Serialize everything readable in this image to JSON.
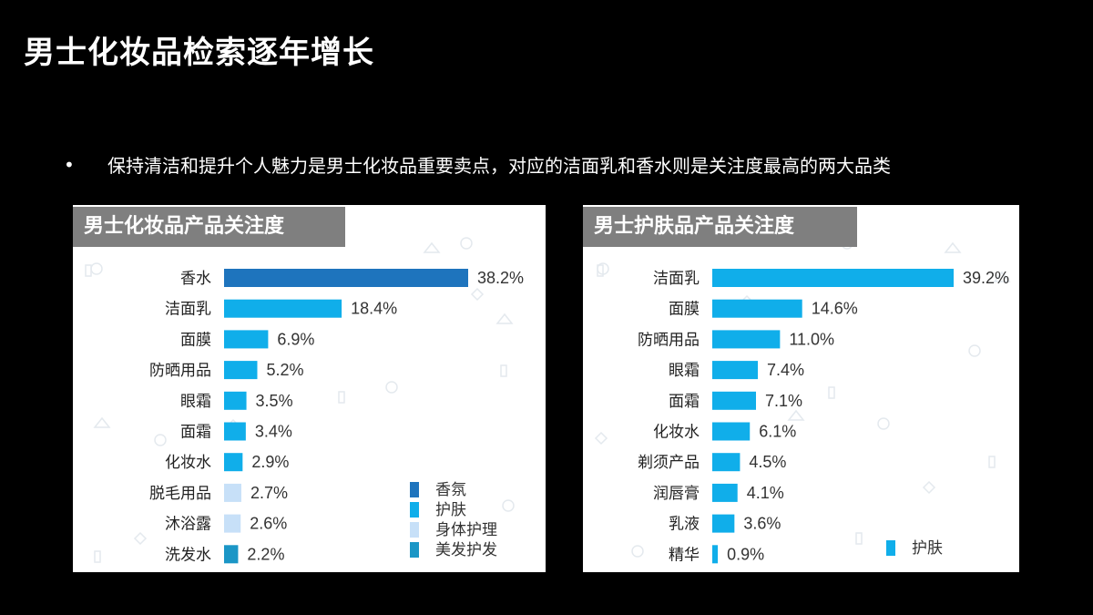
{
  "slide": {
    "title": "男士化妆品检索逐年增长",
    "bullet": "保持清洁和提升个人魅力是男士化妆品重要卖点，对应的洁面乳和香水则是关注度最高的两大品类",
    "bullet_marker": "•"
  },
  "colors": {
    "background": "#000000",
    "header": "#7f7f7f",
    "fragrance": "#1e74bd",
    "skincare": "#10aeea",
    "bodycare": "#c7e0f8",
    "haircare": "#1b96c6"
  },
  "chart_data": [
    {
      "type": "bar",
      "orientation": "horizontal",
      "title": "男士化妆品产品关注度",
      "categories": [
        "香水",
        "洁面乳",
        "面膜",
        "防晒用品",
        "眼霜",
        "面霜",
        "化妆水",
        "脱毛用品",
        "沐浴露",
        "洗发水"
      ],
      "values": [
        38.2,
        18.4,
        6.9,
        5.2,
        3.5,
        3.4,
        2.9,
        2.7,
        2.6,
        2.2
      ],
      "value_labels": [
        "38.2%",
        "18.4%",
        "6.9%",
        "5.2%",
        "3.5%",
        "3.4%",
        "2.9%",
        "2.7%",
        "2.6%",
        "2.2%"
      ],
      "groups": [
        "香氛",
        "护肤",
        "护肤",
        "护肤",
        "护肤",
        "护肤",
        "护肤",
        "身体护理",
        "身体护理",
        "美发护发"
      ],
      "legend": [
        {
          "name": "香氛",
          "color": "#1e74bd"
        },
        {
          "name": "护肤",
          "color": "#10aeea"
        },
        {
          "name": "身体护理",
          "color": "#c7e0f8"
        },
        {
          "name": "美发护发",
          "color": "#1b96c6"
        }
      ],
      "legend_position": "bottom-right",
      "unit": "%",
      "grid": false
    },
    {
      "type": "bar",
      "orientation": "horizontal",
      "title": "男士护肤品产品关注度",
      "categories": [
        "洁面乳",
        "面膜",
        "防晒用品",
        "眼霜",
        "面霜",
        "化妆水",
        "剃须产品",
        "润唇膏",
        "乳液",
        "精华"
      ],
      "values": [
        39.2,
        14.6,
        11.0,
        7.4,
        7.1,
        6.1,
        4.5,
        4.1,
        3.6,
        0.9
      ],
      "value_labels": [
        "39.2%",
        "14.6%",
        "11.0%",
        "7.4%",
        "7.1%",
        "6.1%",
        "4.5%",
        "4.1%",
        "3.6%",
        "0.9%"
      ],
      "groups": [
        "护肤",
        "护肤",
        "护肤",
        "护肤",
        "护肤",
        "护肤",
        "护肤",
        "护肤",
        "护肤",
        "护肤"
      ],
      "legend": [
        {
          "name": "护肤",
          "color": "#10aeea"
        }
      ],
      "legend_position": "bottom-right",
      "unit": "%",
      "grid": false
    }
  ]
}
